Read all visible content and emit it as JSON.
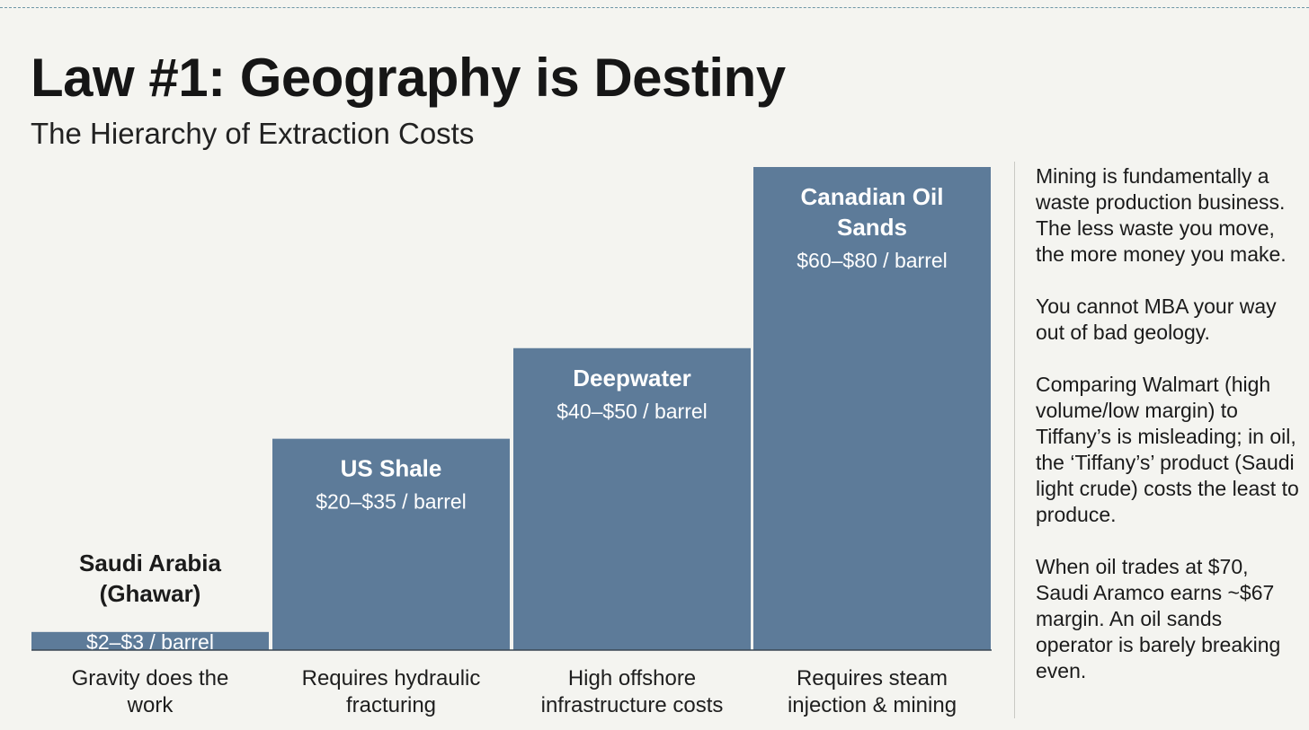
{
  "header": {
    "title": "Law #1: Geography is Destiny",
    "subtitle": "The Hierarchy of Extraction Costs"
  },
  "colors": {
    "bar": "#5d7b99",
    "background": "#f4f4f0",
    "rule": "#6e96a6"
  },
  "chart_data": {
    "type": "bar",
    "categories": [
      "Saudi Arabia (Ghawar)",
      "US Shale",
      "Deepwater",
      "Canadian Oil Sands"
    ],
    "label_lines": [
      [
        "Saudi Arabia",
        "(Ghawar)"
      ],
      [
        "US Shale"
      ],
      [
        "Deepwater"
      ],
      [
        "Canadian Oil",
        "Sands"
      ]
    ],
    "value_labels": [
      "$2–$3 / barrel",
      "$20–$35 / barrel",
      "$40–$50 / barrel",
      "$60–$80 / barrel"
    ],
    "ranges": [
      [
        2,
        3
      ],
      [
        20,
        35
      ],
      [
        40,
        50
      ],
      [
        60,
        80
      ]
    ],
    "values": [
      3,
      35,
      50,
      80
    ],
    "notes": [
      [
        "Gravity does the",
        "work"
      ],
      [
        "Requires hydraulic",
        "fracturing"
      ],
      [
        "High offshore",
        "infrastructure costs"
      ],
      [
        "Requires steam",
        "injection & mining"
      ]
    ],
    "units": "$ / barrel",
    "legend": "none",
    "grid": false
  },
  "sidebar": {
    "paragraphs": [
      "Mining is fundamentally a waste production business. The less waste you move, the more money you make.",
      "You cannot MBA your way out of bad geology.",
      "Comparing Walmart (high volume/low margin) to Tiffany’s is misleading; in oil, the ‘Tiffany’s’ product (Saudi light crude) costs the least to produce.",
      "When oil trades at $70, Saudi Aramco earns ~$67 margin. An oil sands operator is barely breaking even."
    ]
  }
}
